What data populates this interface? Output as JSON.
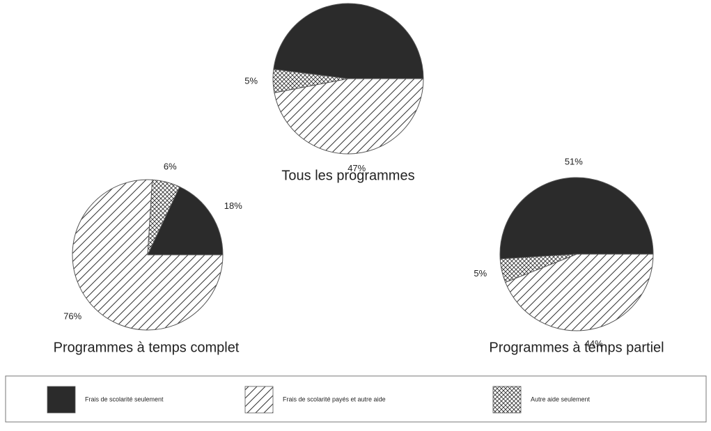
{
  "legend": [
    "Frais de scolarité seulement",
    "Frais de scolarité payés et autre aide",
    "Autre aide seulement"
  ],
  "chart_data": [
    {
      "type": "pie",
      "title": "Tous les programmes",
      "values": [
        48,
        47,
        5
      ],
      "value_labels": [
        "48%",
        "47%",
        "5%"
      ]
    },
    {
      "type": "pie",
      "title": "Programmes à temps complet",
      "values": [
        18,
        76,
        6
      ],
      "value_labels": [
        "18%",
        "76%",
        "6%"
      ]
    },
    {
      "type": "pie",
      "title": "Programmes à temps partiel",
      "values": [
        51,
        44,
        5
      ],
      "value_labels": [
        "51%",
        "44%",
        "5%"
      ]
    }
  ]
}
